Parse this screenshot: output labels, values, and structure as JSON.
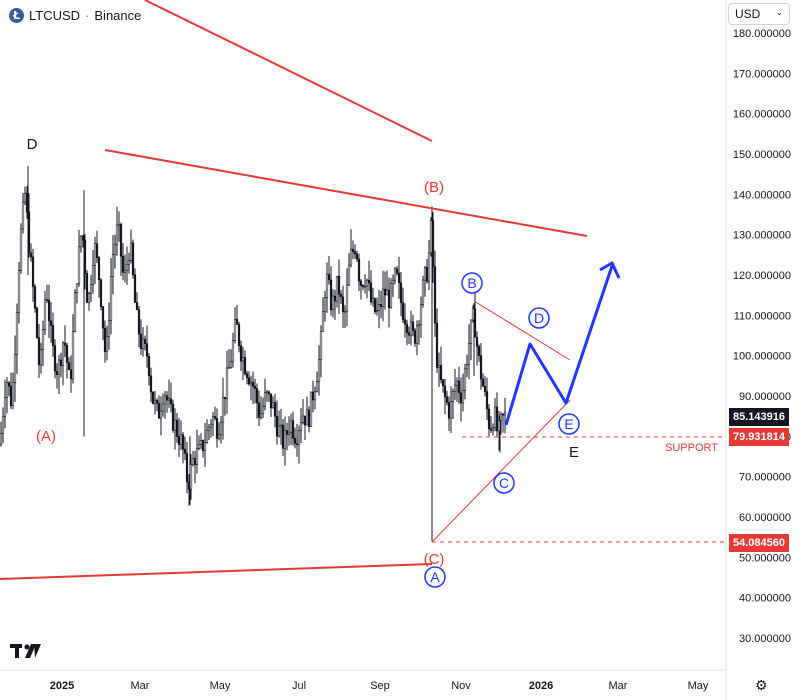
{
  "header": {
    "symbol": "LTCUSD",
    "separator": "·",
    "exchange": "Binance"
  },
  "currency": {
    "label": "USD"
  },
  "price_tags": {
    "current": "85.143916",
    "support": "79.931814",
    "low": "54.084560"
  },
  "colors": {
    "red": "#e53935",
    "blue": "#1e38ff",
    "candle": "#131722",
    "dark_label": "#131722"
  },
  "chart_data": {
    "type": "candlestick",
    "title": "",
    "x_ticks": [
      "2025",
      "Mar",
      "May",
      "Jul",
      "Sep",
      "Nov",
      "2026",
      "Mar",
      "May"
    ],
    "y_ticks": [
      "180.000000",
      "170.000000",
      "160.000000",
      "150.000000",
      "140.000000",
      "130.000000",
      "120.000000",
      "110.000000",
      "100.000000",
      "90.000000",
      "80.000000",
      "70.000000",
      "60.000000",
      "50.000000",
      "40.000000",
      "30.000000"
    ],
    "ylim": [
      27,
      185
    ],
    "price_path": [
      [
        0,
        78
      ],
      [
        6,
        95
      ],
      [
        12,
        88
      ],
      [
        20,
        128
      ],
      [
        25,
        140
      ],
      [
        30,
        125
      ],
      [
        36,
        108
      ],
      [
        40,
        95
      ],
      [
        46,
        118
      ],
      [
        52,
        102
      ],
      [
        58,
        96
      ],
      [
        64,
        105
      ],
      [
        70,
        92
      ],
      [
        76,
        118
      ],
      [
        82,
        132
      ],
      [
        88,
        112
      ],
      [
        94,
        128
      ],
      [
        100,
        118
      ],
      [
        106,
        98
      ],
      [
        112,
        124
      ],
      [
        118,
        132
      ],
      [
        124,
        118
      ],
      [
        130,
        128
      ],
      [
        136,
        110
      ],
      [
        142,
        102
      ],
      [
        148,
        100
      ],
      [
        152,
        90
      ],
      [
        158,
        85
      ],
      [
        164,
        92
      ],
      [
        170,
        86
      ],
      [
        176,
        82
      ],
      [
        182,
        78
      ],
      [
        188,
        68
      ],
      [
        194,
        75
      ],
      [
        200,
        76
      ],
      [
        206,
        80
      ],
      [
        212,
        85
      ],
      [
        218,
        82
      ],
      [
        224,
        90
      ],
      [
        230,
        98
      ],
      [
        236,
        108
      ],
      [
        242,
        100
      ],
      [
        248,
        96
      ],
      [
        254,
        92
      ],
      [
        260,
        85
      ],
      [
        266,
        90
      ],
      [
        272,
        88
      ],
      [
        278,
        82
      ],
      [
        284,
        78
      ],
      [
        290,
        84
      ],
      [
        296,
        80
      ],
      [
        302,
        86
      ],
      [
        308,
        84
      ],
      [
        314,
        92
      ],
      [
        320,
        100
      ],
      [
        326,
        120
      ],
      [
        332,
        112
      ],
      [
        338,
        118
      ],
      [
        344,
        108
      ],
      [
        350,
        124
      ],
      [
        356,
        128
      ],
      [
        360,
        118
      ],
      [
        366,
        120
      ],
      [
        372,
        112
      ],
      [
        378,
        110
      ],
      [
        384,
        116
      ],
      [
        390,
        114
      ],
      [
        396,
        120
      ],
      [
        402,
        112
      ],
      [
        408,
        108
      ],
      [
        414,
        104
      ],
      [
        420,
        112
      ],
      [
        424,
        118
      ],
      [
        428,
        122
      ],
      [
        432,
        134
      ],
      [
        434,
        110
      ],
      [
        438,
        96
      ],
      [
        444,
        90
      ],
      [
        450,
        86
      ],
      [
        456,
        94
      ],
      [
        462,
        90
      ],
      [
        466,
        98
      ],
      [
        470,
        105
      ],
      [
        474,
        110
      ],
      [
        478,
        100
      ],
      [
        482,
        94
      ],
      [
        486,
        88
      ],
      [
        490,
        82
      ],
      [
        494,
        86
      ],
      [
        498,
        80
      ],
      [
        502,
        84
      ],
      [
        506,
        85.14
      ]
    ],
    "wave_labels": [
      {
        "text": "D",
        "style": "plain"
      },
      {
        "text": "(B)",
        "style": "red"
      },
      {
        "text": "(A)",
        "style": "red"
      },
      {
        "text": "(C)",
        "style": "red"
      },
      {
        "text": "A",
        "style": "circle"
      },
      {
        "text": "B",
        "style": "circle"
      },
      {
        "text": "C",
        "style": "circle"
      },
      {
        "text": "D",
        "style": "circle"
      },
      {
        "text": "E",
        "style": "circle"
      },
      {
        "text": "E",
        "style": "plain"
      }
    ],
    "annotations": {
      "support_label": "SUPPORT"
    },
    "levels": {
      "support": 79.931814,
      "low": 54.08456,
      "current": 85.143916
    },
    "projection": [
      85.14,
      103,
      89,
      122
    ]
  }
}
